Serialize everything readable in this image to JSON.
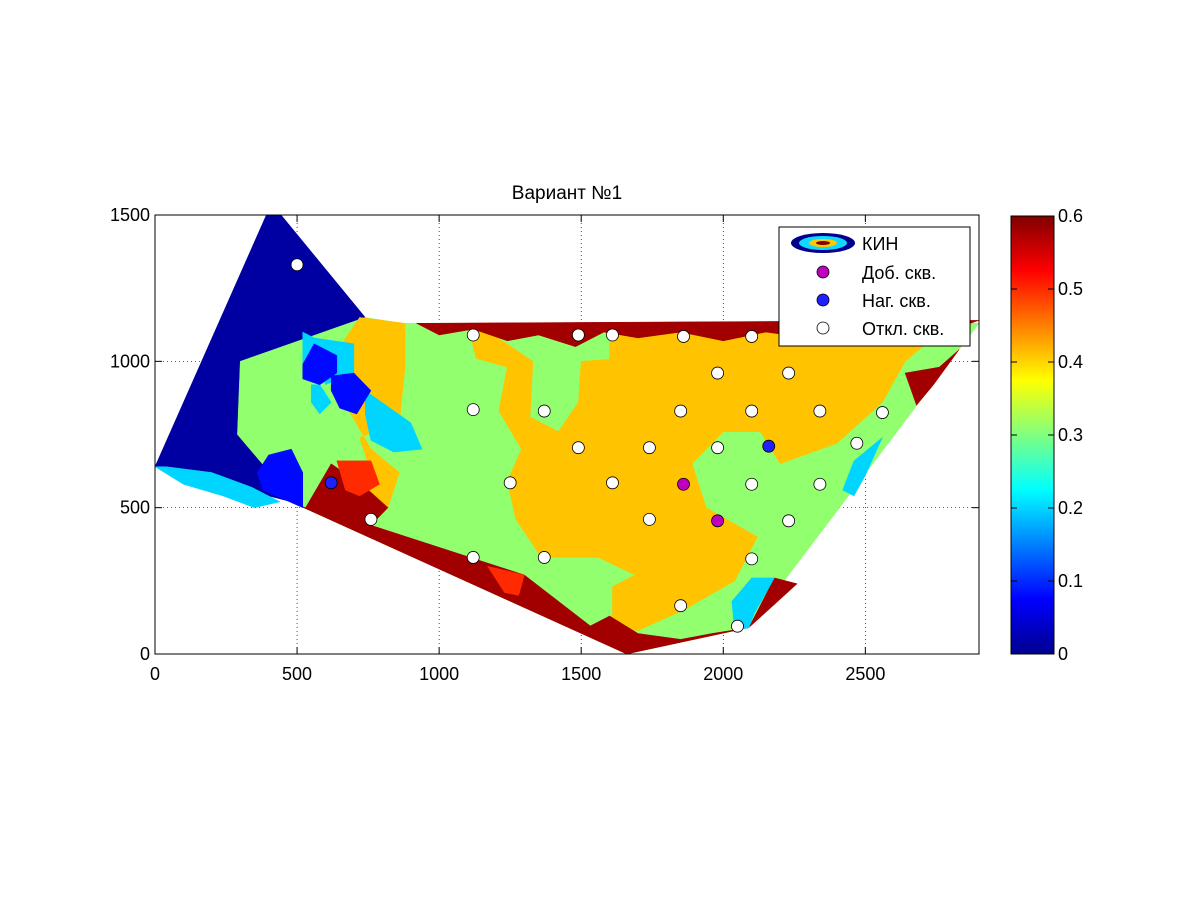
{
  "chart_data": {
    "type": "heatmap",
    "title": "Вариант №1",
    "xlabel": "",
    "ylabel": "",
    "xlim": [
      0,
      2900
    ],
    "ylim": [
      0,
      1500
    ],
    "xticks": [
      0,
      500,
      1000,
      1500,
      2000,
      2500
    ],
    "yticks": [
      0,
      500,
      1000,
      1500
    ],
    "grid": true,
    "legend_placement": "top-right",
    "legend": [
      "КИН",
      "Доб. скв.",
      "Наг. скв.",
      "Откл. скв."
    ],
    "colorbar": {
      "colormap": "jet",
      "range": [
        0,
        0.6
      ],
      "ticks": [
        0,
        0.1,
        0.2,
        0.3,
        0.4,
        0.5,
        0.6
      ],
      "tick_labels": [
        "0",
        "0.1",
        "0.2",
        "0.3",
        "0.4",
        "0.5",
        "0.6"
      ]
    },
    "colors": {
      "dark_blue": "#00008f",
      "blue": "#0040ff",
      "cyan": "#10d8ff",
      "green": "#90ff70",
      "orange": "#ffc800",
      "red": "#ff2000",
      "dark_red": "#800000",
      "production_well": "#c000c0",
      "injection_well": "#2020ff",
      "disabled_well": "#ffffff"
    },
    "outline": [
      [
        0,
        640
      ],
      [
        410,
        1540
      ],
      [
        740,
        1150
      ],
      [
        860,
        1130
      ],
      [
        2900,
        1130
      ],
      [
        2090,
        90
      ],
      [
        1660,
        0
      ],
      [
        500,
        510
      ],
      [
        0,
        640
      ]
    ],
    "zones": [
      {
        "value": 0.02,
        "poly": [
          [
            0,
            640
          ],
          [
            410,
            1540
          ],
          [
            740,
            1150
          ],
          [
            850,
            1080
          ],
          [
            520,
            510
          ],
          [
            0,
            640
          ]
        ]
      },
      {
        "value": 0.31,
        "poly": [
          [
            300,
            1000
          ],
          [
            740,
            1150
          ],
          [
            870,
            1130
          ],
          [
            2900,
            1130
          ],
          [
            2090,
            90
          ],
          [
            1660,
            0
          ],
          [
            500,
            510
          ],
          [
            290,
            750
          ]
        ]
      },
      {
        "value": 0.41,
        "poly": [
          [
            720,
            1150
          ],
          [
            650,
            1050
          ],
          [
            660,
            870
          ],
          [
            760,
            700
          ],
          [
            860,
            620
          ],
          [
            820,
            500
          ],
          [
            760,
            460
          ],
          [
            640,
            560
          ],
          [
            760,
            620
          ],
          [
            720,
            740
          ],
          [
            860,
            790
          ],
          [
            880,
            980
          ],
          [
            880,
            1130
          ]
        ]
      },
      {
        "value": 0.41,
        "poly": [
          [
            1100,
            1130
          ],
          [
            1130,
            1010
          ],
          [
            1240,
            980
          ],
          [
            1210,
            830
          ],
          [
            1290,
            700
          ],
          [
            1240,
            590
          ],
          [
            1270,
            460
          ],
          [
            1360,
            330
          ],
          [
            1560,
            330
          ],
          [
            1690,
            270
          ],
          [
            1610,
            230
          ],
          [
            1610,
            120
          ],
          [
            1580,
            90
          ],
          [
            1700,
            80
          ],
          [
            1860,
            150
          ],
          [
            2040,
            250
          ],
          [
            2120,
            400
          ],
          [
            1940,
            500
          ],
          [
            1890,
            650
          ],
          [
            2000,
            760
          ],
          [
            2130,
            760
          ],
          [
            2200,
            650
          ],
          [
            2400,
            720
          ],
          [
            2560,
            860
          ],
          [
            2640,
            1000
          ],
          [
            2800,
            1130
          ],
          [
            1600,
            1130
          ],
          [
            1600,
            1000
          ],
          [
            1720,
            880
          ],
          [
            1660,
            740
          ],
          [
            1710,
            630
          ],
          [
            1570,
            540
          ],
          [
            1560,
            430
          ],
          [
            1710,
            430
          ],
          [
            1800,
            540
          ],
          [
            1740,
            640
          ],
          [
            1780,
            780
          ],
          [
            1720,
            920
          ],
          [
            1800,
            1020
          ],
          [
            1500,
            1000
          ],
          [
            1490,
            860
          ],
          [
            1420,
            760
          ],
          [
            1320,
            810
          ],
          [
            1330,
            1000
          ],
          [
            1130,
            1130
          ]
        ]
      },
      {
        "value": 0.58,
        "poly": [
          [
            530,
            500
          ],
          [
            620,
            650
          ],
          [
            740,
            570
          ],
          [
            820,
            500
          ],
          [
            760,
            440
          ],
          [
            1300,
            270
          ],
          [
            1660,
            0
          ],
          [
            500,
            510
          ]
        ]
      },
      {
        "value": 0.58,
        "poly": [
          [
            1660,
            0
          ],
          [
            1500,
            80
          ],
          [
            1600,
            130
          ],
          [
            1700,
            70
          ],
          [
            1850,
            50
          ],
          [
            1960,
            70
          ],
          [
            2090,
            90
          ]
        ]
      },
      {
        "value": 0.58,
        "poly": [
          [
            920,
            1130
          ],
          [
            1000,
            1090
          ],
          [
            1120,
            1110
          ],
          [
            1240,
            1070
          ],
          [
            1350,
            1090
          ],
          [
            1480,
            1050
          ],
          [
            1580,
            1100
          ],
          [
            1700,
            1080
          ],
          [
            1850,
            1100
          ],
          [
            2000,
            1070
          ],
          [
            2150,
            1100
          ],
          [
            2300,
            1080
          ],
          [
            2500,
            1100
          ],
          [
            2680,
            1090
          ],
          [
            2840,
            1120
          ],
          [
            2900,
            1140
          ]
        ]
      },
      {
        "value": 0.58,
        "poly": [
          [
            2260,
            240
          ],
          [
            2090,
            90
          ],
          [
            2180,
            260
          ]
        ]
      },
      {
        "value": 0.58,
        "poly": [
          [
            2830,
            1040
          ],
          [
            2740,
            920
          ],
          [
            2680,
            850
          ],
          [
            2640,
            960
          ],
          [
            2760,
            980
          ]
        ]
      },
      {
        "value": 0.5,
        "poly": [
          [
            640,
            660
          ],
          [
            670,
            560
          ],
          [
            720,
            540
          ],
          [
            790,
            580
          ],
          [
            760,
            660
          ]
        ]
      },
      {
        "value": 0.5,
        "poly": [
          [
            1170,
            300
          ],
          [
            1300,
            270
          ],
          [
            1280,
            200
          ],
          [
            1230,
            210
          ]
        ]
      },
      {
        "value": 0.2,
        "poly": [
          [
            520,
            1100
          ],
          [
            560,
            1080
          ],
          [
            700,
            1060
          ],
          [
            700,
            960
          ],
          [
            600,
            920
          ],
          [
            580,
            980
          ],
          [
            520,
            990
          ]
        ]
      },
      {
        "value": 0.2,
        "poly": [
          [
            740,
            900
          ],
          [
            900,
            790
          ],
          [
            940,
            700
          ],
          [
            840,
            690
          ],
          [
            760,
            730
          ],
          [
            740,
            820
          ]
        ]
      },
      {
        "value": 0.2,
        "poly": [
          [
            550,
            920
          ],
          [
            580,
            920
          ],
          [
            620,
            860
          ],
          [
            580,
            820
          ],
          [
            550,
            860
          ]
        ]
      },
      {
        "value": 0.2,
        "poly": [
          [
            40,
            640
          ],
          [
            200,
            620
          ],
          [
            340,
            570
          ],
          [
            440,
            520
          ],
          [
            350,
            500
          ],
          [
            240,
            540
          ],
          [
            100,
            580
          ],
          [
            0,
            640
          ]
        ]
      },
      {
        "value": 0.2,
        "poly": [
          [
            2040,
            80
          ],
          [
            2030,
            180
          ],
          [
            2100,
            260
          ],
          [
            2180,
            260
          ],
          [
            2110,
            140
          ],
          [
            2090,
            90
          ]
        ]
      },
      {
        "value": 0.2,
        "poly": [
          [
            2420,
            560
          ],
          [
            2460,
            660
          ],
          [
            2560,
            740
          ],
          [
            2500,
            610
          ],
          [
            2460,
            540
          ]
        ]
      },
      {
        "value": 0.08,
        "poly": [
          [
            520,
            990
          ],
          [
            560,
            1060
          ],
          [
            640,
            1020
          ],
          [
            640,
            960
          ],
          [
            580,
            920
          ],
          [
            520,
            940
          ]
        ]
      },
      {
        "value": 0.08,
        "poly": [
          [
            620,
            950
          ],
          [
            700,
            960
          ],
          [
            760,
            900
          ],
          [
            710,
            820
          ],
          [
            650,
            840
          ],
          [
            620,
            900
          ]
        ]
      },
      {
        "value": 0.08,
        "poly": [
          [
            380,
            560
          ],
          [
            520,
            500
          ],
          [
            520,
            620
          ],
          [
            480,
            700
          ],
          [
            400,
            680
          ],
          [
            360,
            620
          ]
        ]
      }
    ],
    "wells": [
      {
        "type": "disabled",
        "x": 500,
        "y": 1330
      },
      {
        "type": "disabled",
        "x": 1120,
        "y": 1090
      },
      {
        "type": "disabled",
        "x": 1490,
        "y": 1090
      },
      {
        "type": "disabled",
        "x": 1610,
        "y": 1090
      },
      {
        "type": "disabled",
        "x": 1860,
        "y": 1085
      },
      {
        "type": "disabled",
        "x": 2100,
        "y": 1085
      },
      {
        "type": "disabled",
        "x": 2340,
        "y": 1085
      },
      {
        "type": "disabled",
        "x": 2570,
        "y": 1085
      },
      {
        "type": "disabled",
        "x": 1980,
        "y": 960
      },
      {
        "type": "disabled",
        "x": 2230,
        "y": 960
      },
      {
        "type": "disabled",
        "x": 1120,
        "y": 835
      },
      {
        "type": "disabled",
        "x": 1370,
        "y": 830
      },
      {
        "type": "disabled",
        "x": 1850,
        "y": 830
      },
      {
        "type": "disabled",
        "x": 2100,
        "y": 830
      },
      {
        "type": "disabled",
        "x": 2340,
        "y": 830
      },
      {
        "type": "disabled",
        "x": 2560,
        "y": 825
      },
      {
        "type": "disabled",
        "x": 1490,
        "y": 705
      },
      {
        "type": "disabled",
        "x": 1740,
        "y": 705
      },
      {
        "type": "disabled",
        "x": 1980,
        "y": 705
      },
      {
        "type": "disabled",
        "x": 2470,
        "y": 720
      },
      {
        "type": "injection",
        "x": 620,
        "y": 585
      },
      {
        "type": "injection",
        "x": 2160,
        "y": 710
      },
      {
        "type": "production",
        "x": 1860,
        "y": 580
      },
      {
        "type": "production",
        "x": 1980,
        "y": 455
      },
      {
        "type": "disabled",
        "x": 1250,
        "y": 585
      },
      {
        "type": "disabled",
        "x": 1610,
        "y": 585
      },
      {
        "type": "disabled",
        "x": 2100,
        "y": 580
      },
      {
        "type": "disabled",
        "x": 2340,
        "y": 580
      },
      {
        "type": "disabled",
        "x": 760,
        "y": 460
      },
      {
        "type": "disabled",
        "x": 1740,
        "y": 460
      },
      {
        "type": "disabled",
        "x": 2230,
        "y": 455
      },
      {
        "type": "disabled",
        "x": 1120,
        "y": 330
      },
      {
        "type": "disabled",
        "x": 1370,
        "y": 330
      },
      {
        "type": "disabled",
        "x": 2100,
        "y": 325
      },
      {
        "type": "disabled",
        "x": 1850,
        "y": 165
      },
      {
        "type": "disabled",
        "x": 2050,
        "y": 95
      }
    ]
  }
}
